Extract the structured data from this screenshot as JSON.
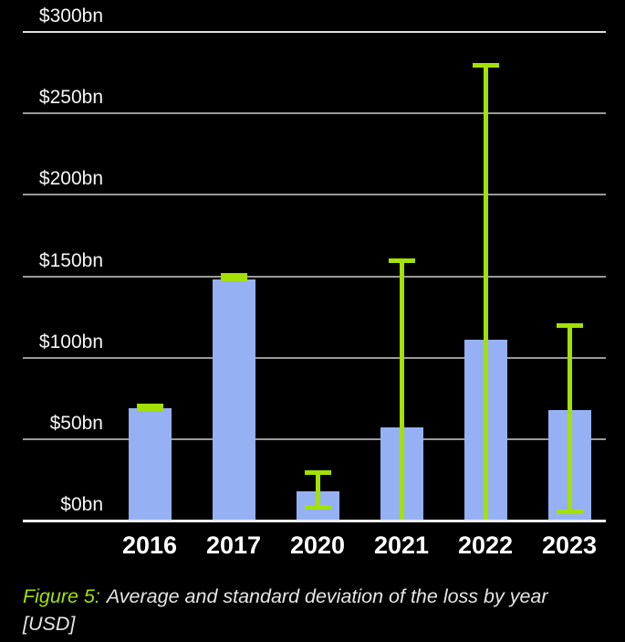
{
  "colors": {
    "background": "#000000",
    "bar": "#95b1f4",
    "error_bar_green": "#a3e004",
    "gridline": "#9a9a9a",
    "gridline_top": "#dedede",
    "baseline": "#ededed",
    "axis_text": "#f5f5f5",
    "x_label_text": "#ffffff",
    "caption_text": "#e6e6e6"
  },
  "caption": {
    "label": "Figure 5:",
    "text": "Average and standard deviation of the loss by year",
    "unit_line": "[USD]"
  },
  "chart_data": {
    "type": "bar",
    "title": "",
    "xlabel": "",
    "ylabel": "",
    "unit": "USD billions",
    "grid": true,
    "legend": "none",
    "ylim": [
      0,
      300
    ],
    "y_ticks": {
      "values": [
        300,
        250,
        200,
        150,
        100,
        50,
        0
      ],
      "labels": [
        "$300bn",
        "$250bn",
        "$200bn",
        "$150bn",
        "$100bn",
        "$50bn",
        "$0bn"
      ]
    },
    "categories": [
      "2016",
      "2017",
      "2020",
      "2021",
      "2022",
      "2023"
    ],
    "series": [
      {
        "name": "Average loss",
        "values": [
          69,
          148,
          18,
          57,
          111,
          68
        ]
      }
    ],
    "error_bars": {
      "description": "standard deviation whiskers, clipped at $0bn",
      "high": [
        70,
        150,
        31,
        161,
        281,
        121
      ],
      "low": [
        69,
        149,
        7,
        0,
        0,
        4
      ],
      "clipped_at_zero": [
        false,
        false,
        false,
        true,
        true,
        false
      ]
    }
  }
}
